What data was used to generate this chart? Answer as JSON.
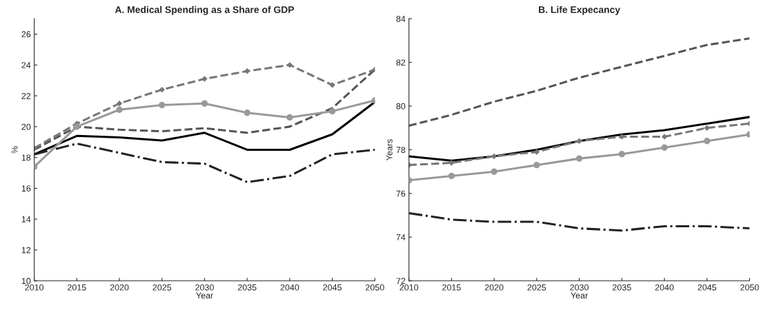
{
  "chart_data": [
    {
      "type": "line",
      "title": "A. Medical Spending as a Share of GDP",
      "xlabel": "Year",
      "ylabel": "%",
      "x": [
        2010,
        2015,
        2020,
        2025,
        2030,
        2035,
        2040,
        2045,
        2050
      ],
      "xlim": [
        2010,
        2050
      ],
      "xticks": [
        2010,
        2015,
        2020,
        2025,
        2030,
        2035,
        2040,
        2045,
        2050
      ],
      "ylim": [
        10,
        27
      ],
      "yticks": [
        10,
        12,
        14,
        16,
        18,
        20,
        22,
        24,
        26
      ],
      "series": [
        {
          "color": "#000000",
          "line_style": "solid",
          "marker": "none",
          "values": [
            18.2,
            19.4,
            19.3,
            19.1,
            19.6,
            18.5,
            18.5,
            19.5,
            21.6
          ]
        },
        {
          "color": "#999999",
          "line_style": "solid",
          "marker": "circle",
          "values": [
            17.4,
            20.0,
            21.1,
            21.4,
            21.5,
            20.9,
            20.6,
            21.0,
            21.7
          ]
        },
        {
          "color": "#555555",
          "line_style": "dashed",
          "marker": "none",
          "values": [
            18.5,
            20.0,
            19.8,
            19.7,
            19.9,
            19.6,
            20.0,
            21.2,
            23.7
          ]
        },
        {
          "color": "#777777",
          "line_style": "dashed",
          "marker": "diamond",
          "values": [
            18.6,
            20.2,
            21.5,
            22.4,
            23.1,
            23.6,
            24.0,
            22.7,
            23.7
          ]
        },
        {
          "color": "#222222",
          "line_style": "dashdot",
          "marker": "none",
          "values": [
            18.2,
            18.9,
            18.3,
            17.7,
            17.6,
            16.4,
            16.8,
            18.2,
            18.5
          ]
        }
      ]
    },
    {
      "type": "line",
      "title": "B. Life Expecancy",
      "xlabel": "Year",
      "ylabel": "Years",
      "x": [
        2010,
        2015,
        2020,
        2025,
        2030,
        2035,
        2040,
        2045,
        2050
      ],
      "xlim": [
        2010,
        2050
      ],
      "xticks": [
        2010,
        2015,
        2020,
        2025,
        2030,
        2035,
        2040,
        2045,
        2050
      ],
      "ylim": [
        72,
        84
      ],
      "yticks": [
        72,
        74,
        76,
        78,
        80,
        82,
        84
      ],
      "series": [
        {
          "color": "#555555",
          "line_style": "dashed",
          "marker": "none",
          "values": [
            79.1,
            79.6,
            80.2,
            80.7,
            81.3,
            81.8,
            82.3,
            82.8,
            83.1
          ]
        },
        {
          "color": "#000000",
          "line_style": "solid",
          "marker": "none",
          "values": [
            77.7,
            77.5,
            77.7,
            78.0,
            78.4,
            78.7,
            78.9,
            79.2,
            79.5
          ]
        },
        {
          "color": "#777777",
          "line_style": "dashed",
          "marker": "diamond",
          "values": [
            77.3,
            77.4,
            77.7,
            77.9,
            78.4,
            78.6,
            78.6,
            79.0,
            79.2
          ]
        },
        {
          "color": "#999999",
          "line_style": "solid",
          "marker": "circle",
          "values": [
            76.6,
            76.8,
            77.0,
            77.3,
            77.6,
            77.8,
            78.1,
            78.4,
            78.7
          ]
        },
        {
          "color": "#222222",
          "line_style": "dashdot",
          "marker": "none",
          "values": [
            75.1,
            74.8,
            74.7,
            74.7,
            74.4,
            74.3,
            74.5,
            74.5,
            74.4
          ]
        }
      ]
    }
  ]
}
